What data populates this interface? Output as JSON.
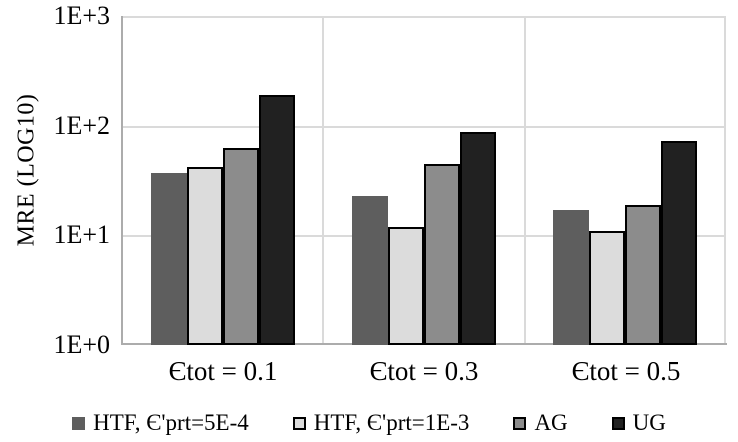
{
  "chart_data": {
    "type": "bar",
    "title": "",
    "xlabel": "",
    "ylabel": "MRE (LOG10)",
    "y_scale": "log10",
    "ylim": [
      1,
      1000
    ],
    "yticks_top_to_bottom": [
      "1E+3",
      "1E+2",
      "1E+1",
      "1E+0"
    ],
    "categories": [
      "Єtot = 0.1",
      "Єtot = 0.3",
      "Єtot = 0.5"
    ],
    "series": [
      {
        "name": "HTF, Є'prt=5E-4",
        "color": "#5E5E5E",
        "outline": "none",
        "values": [
          37,
          23,
          17
        ]
      },
      {
        "name": "HTF, Є'prt=1E-3",
        "color": "#DCDCDC",
        "outline": "#000000",
        "values": [
          42,
          12,
          11
        ]
      },
      {
        "name": "AG",
        "color": "#8C8C8C",
        "outline": "#000000",
        "values": [
          63,
          45,
          19
        ]
      },
      {
        "name": "UG",
        "color": "#212121",
        "outline": "#000000",
        "values": [
          190,
          88,
          72
        ]
      }
    ],
    "legend_position": "bottom",
    "grid": true,
    "gridline_color": "#DADADA",
    "axis_color": "#ACACAC",
    "background_color": "#FFFFFF"
  }
}
